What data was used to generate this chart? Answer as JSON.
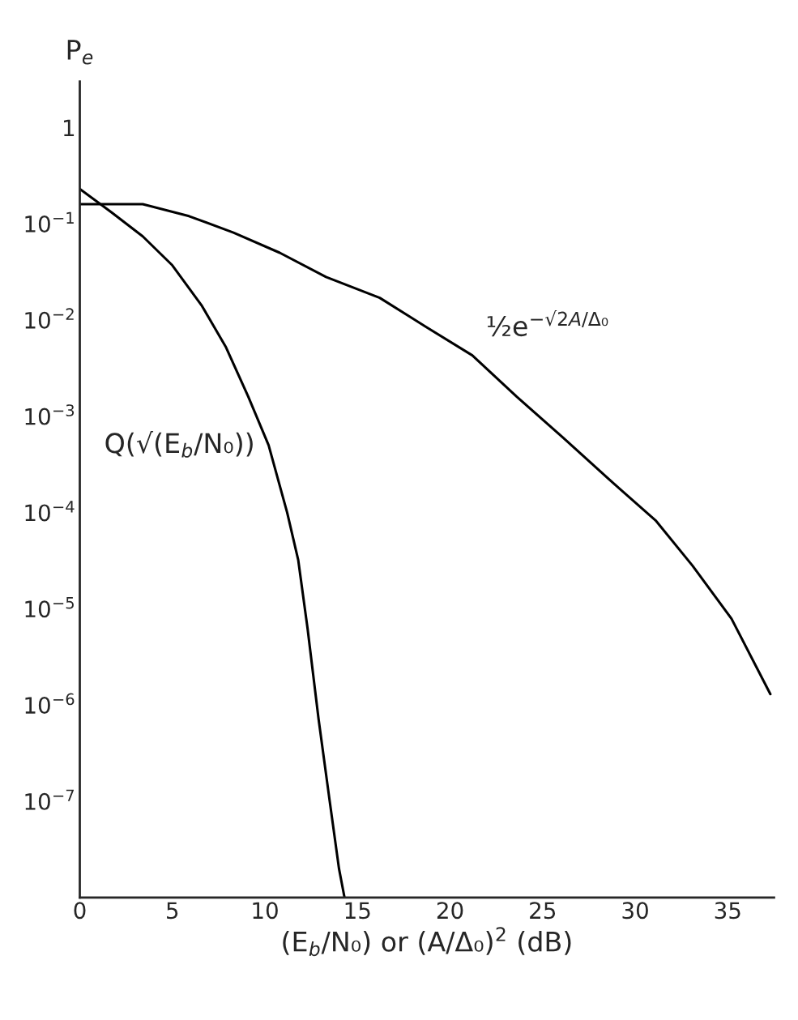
{
  "chart_data": {
    "type": "line",
    "xlabel": "(E$_{b}$/N₀) or (A/Δ₀)$^{2}$ (dB)",
    "ylabel": "P$_{e}$",
    "log": "y",
    "xlim": [
      0,
      37.5
    ],
    "xticks": [
      0,
      5,
      10,
      15,
      20,
      25,
      30,
      35
    ],
    "ylim": [
      1e-08,
      3
    ],
    "yticks": [
      1,
      {
        "value": 0.1,
        "label": "10$^{−1}$"
      },
      {
        "value": 0.01,
        "label": "10$^{−2}$"
      },
      {
        "value": 0.001,
        "label": "10$^{−3}$"
      },
      {
        "value": 0.0001,
        "label": "10$^{−4}$"
      },
      {
        "value": 1e-05,
        "label": "10$^{−5}$"
      },
      {
        "value": 1e-06,
        "label": "10$^{−6}$"
      },
      {
        "value": 1e-07,
        "label": "10$^{−7}$"
      }
    ],
    "grid": false,
    "legend": false,
    "marker": "none",
    "line_style": "solid",
    "series": [
      {
        "name": "Q(√(E$_{b}$/N₀))",
        "color": "#000000",
        "x": [
          0,
          1.75,
          3.4,
          5,
          6.6,
          7.9,
          9.1,
          10.2,
          11.2,
          11.8,
          12.3,
          12.9,
          13.5,
          14.0,
          14.3
        ],
        "values": [
          0.23,
          0.13,
          0.074,
          0.037,
          0.014,
          0.0052,
          0.0016,
          0.0005,
          0.0001,
          3.2e-05,
          6.3e-06,
          7.1e-07,
          1e-07,
          2e-08,
          1e-08
        ]
      },
      {
        "name": "½e$^{−√2A/Δ₀}$",
        "color": "#000000",
        "x": [
          0,
          3.4,
          5.9,
          8.3,
          10.8,
          13.3,
          16.2,
          18.7,
          21.2,
          23.6,
          26.1,
          28.6,
          31.1,
          33.1,
          35.2,
          37.3
        ],
        "values": [
          0.16,
          0.16,
          0.12,
          0.081,
          0.05,
          0.028,
          0.017,
          0.0085,
          0.0043,
          0.0016,
          0.0006,
          0.00022,
          8.3e-05,
          2.8e-05,
          7.9e-06,
          1.3e-06
        ]
      }
    ]
  }
}
